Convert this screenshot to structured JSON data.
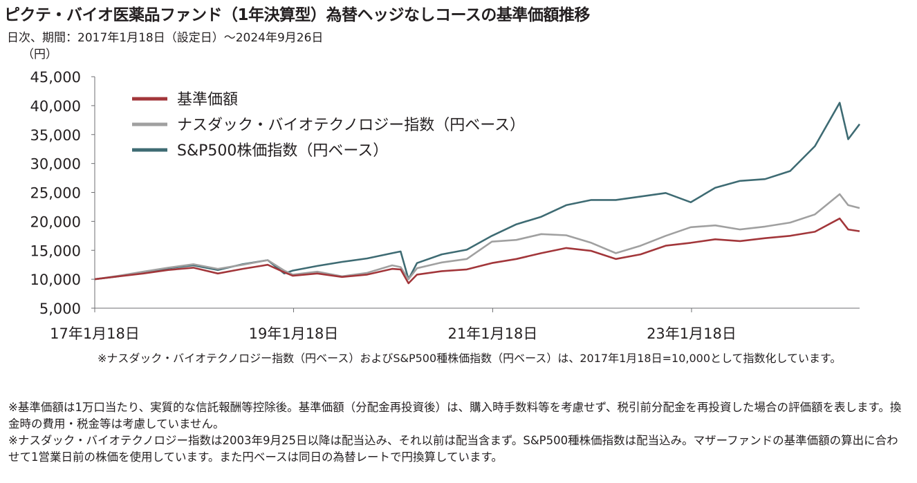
{
  "title": "ピクテ・バイオ医薬品ファンド（1年決算型）為替ヘッジなしコースの基準価額推移",
  "subtitle": "日次、期間：2017年1月18日（設定日）～2024年9月26日",
  "chart_data": {
    "type": "line",
    "ylabel": "（円）",
    "ylim": [
      5000,
      45000
    ],
    "yticks": [
      "45,000",
      "40,000",
      "35,000",
      "30,000",
      "25,000",
      "20,000",
      "15,000",
      "10,000",
      "5,000"
    ],
    "xlim": [
      "2017-01-18",
      "2024-09-26"
    ],
    "xticks": [
      {
        "label": "17年1月18日",
        "date": "2017-01-18"
      },
      {
        "label": "19年1月18日",
        "date": "2019-01-18"
      },
      {
        "label": "21年1月18日",
        "date": "2021-01-18"
      },
      {
        "label": "23年1月18日",
        "date": "2023-01-18"
      }
    ],
    "legend_position": "top-left",
    "grid": false,
    "x": [
      "2017-01-18",
      "2017-04",
      "2017-07",
      "2017-10",
      "2018-01",
      "2018-04",
      "2018-07",
      "2018-10",
      "2018-12",
      "2019-01",
      "2019-04",
      "2019-07",
      "2019-10",
      "2020-01",
      "2020-02",
      "2020-03",
      "2020-04",
      "2020-07",
      "2020-10",
      "2021-01",
      "2021-04",
      "2021-07",
      "2021-10",
      "2022-01",
      "2022-04",
      "2022-07",
      "2022-10",
      "2023-01",
      "2023-04",
      "2023-07",
      "2023-10",
      "2024-01",
      "2024-04",
      "2024-07",
      "2024-08",
      "2024-09-26"
    ],
    "series": [
      {
        "name": "基準価額",
        "color": "#a2363a",
        "values": [
          10000,
          10500,
          11000,
          11600,
          12000,
          11000,
          11800,
          12500,
          11200,
          10600,
          11000,
          10400,
          10800,
          11800,
          11700,
          9300,
          10800,
          11400,
          11700,
          12800,
          13500,
          14500,
          15400,
          14900,
          13500,
          14300,
          15800,
          16300,
          16900,
          16600,
          17100,
          17500,
          18200,
          20500,
          18600,
          18300
        ]
      },
      {
        "name": "ナスダック・バイオテクノロジー指数（円ベース）",
        "color": "#a0a0a0",
        "values": [
          10000,
          10600,
          11300,
          12000,
          12600,
          11800,
          12500,
          13300,
          11500,
          10800,
          11300,
          10500,
          11100,
          12400,
          12100,
          10000,
          11900,
          12900,
          13500,
          16500,
          16800,
          17800,
          17600,
          16300,
          14500,
          15800,
          17500,
          19000,
          19300,
          18600,
          19100,
          19800,
          21200,
          24700,
          22800,
          22300
        ]
      },
      {
        "name": "S&P500株価指数（円ベース）",
        "color": "#3e6b73",
        "values": [
          10000,
          10500,
          11200,
          11900,
          12400,
          11600,
          12600,
          13300,
          11000,
          11500,
          12300,
          13000,
          13600,
          14500,
          14800,
          10000,
          12800,
          14300,
          15100,
          17500,
          19500,
          20800,
          22800,
          23700,
          23700,
          24300,
          24900,
          23300,
          25800,
          27000,
          27300,
          28700,
          33000,
          40500,
          34200,
          36800
        ]
      }
    ]
  },
  "note_index": "※ナスダック・バイオテクノロジー指数（円ベース）およびS&P500種株価指数（円ベース）は、2017年1月18日=10,000として指数化しています。",
  "notes": [
    "※基準価額は1万口当たり、実質的な信託報酬等控除後。基準価額（分配金再投資後）は、購入時手数料等を考慮せず、税引前分配金を再投資した場合の評価額を表します。換金時の費用・税金等は考慮していません。",
    "※ナスダック・バイオテクノロジー指数は2003年9月25日以降は配当込み、それ以前は配当含まず。S&P500種株価指数は配当込み。マザーファンドの基準価額の算出に合わせて1営業日前の株価を使用しています。また円ベースは同日の為替レートで円換算しています。"
  ]
}
